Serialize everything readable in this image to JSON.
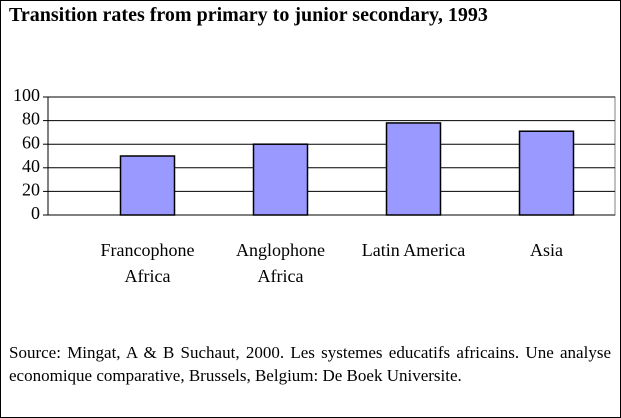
{
  "chart_data": {
    "type": "bar",
    "title": "Transition rates from primary to junior secondary, 1993",
    "categories": [
      "Francophone Africa",
      "Anglophone Africa",
      "Latin America",
      "Asia"
    ],
    "values": [
      50,
      60,
      78,
      71
    ],
    "color": "#9999ff",
    "ylim": [
      0,
      100
    ],
    "yticks": [
      0,
      20,
      40,
      60,
      80,
      100
    ],
    "grid": true,
    "source": "Source: Mingat, A & B Suchaut, 2000. Les systemes educatifs africains.  Une analyse economique comparative, Brussels, Belgium: De Boek Universite."
  }
}
